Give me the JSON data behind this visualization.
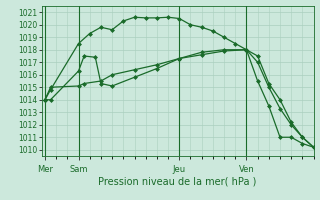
{
  "bg_color": "#cce8dc",
  "grid_color": "#aacfbf",
  "line_color": "#1a6b2a",
  "title": "Pression niveau de la mer( hPa )",
  "ylim": [
    1009.5,
    1021.5
  ],
  "yticks": [
    1010,
    1011,
    1012,
    1013,
    1014,
    1015,
    1016,
    1017,
    1018,
    1019,
    1020,
    1021
  ],
  "day_labels": [
    "Mer",
    "Sam",
    "Jeu",
    "Ven"
  ],
  "day_positions": [
    0,
    3,
    12,
    18
  ],
  "xlim": [
    -0.3,
    24
  ],
  "series1_x": [
    0,
    0.5,
    3,
    3.5,
    4.5,
    5,
    6,
    8,
    10,
    12,
    14,
    16,
    18,
    19,
    20,
    21,
    22,
    23,
    24
  ],
  "series1_y": [
    1014.0,
    1014.0,
    1016.3,
    1017.5,
    1017.4,
    1015.3,
    1015.1,
    1015.8,
    1016.5,
    1017.3,
    1017.8,
    1018.0,
    1018.0,
    1017.5,
    1015.3,
    1014.0,
    1012.2,
    1011.0,
    1010.2
  ],
  "series2_x": [
    0,
    0.5,
    3,
    4,
    5,
    6,
    7,
    8,
    9,
    10,
    11,
    12,
    13,
    14,
    15,
    16,
    17,
    18,
    19,
    20,
    21,
    22,
    23,
    24
  ],
  "series2_y": [
    1014.0,
    1014.8,
    1018.5,
    1019.3,
    1019.8,
    1019.6,
    1020.3,
    1020.6,
    1020.55,
    1020.55,
    1020.6,
    1020.5,
    1020.0,
    1019.8,
    1019.5,
    1019.0,
    1018.5,
    1018.0,
    1015.5,
    1013.5,
    1011.0,
    1011.0,
    1010.5,
    1010.2
  ],
  "series3_x": [
    0,
    0.5,
    3,
    3.5,
    5,
    6,
    8,
    10,
    12,
    14,
    16,
    18,
    19,
    20,
    21,
    22,
    23,
    24
  ],
  "series3_y": [
    1014.0,
    1015.0,
    1015.1,
    1015.3,
    1015.5,
    1016.0,
    1016.4,
    1016.8,
    1017.3,
    1017.6,
    1017.9,
    1018.0,
    1017.0,
    1015.0,
    1013.3,
    1012.0,
    1011.0,
    1010.2
  ]
}
